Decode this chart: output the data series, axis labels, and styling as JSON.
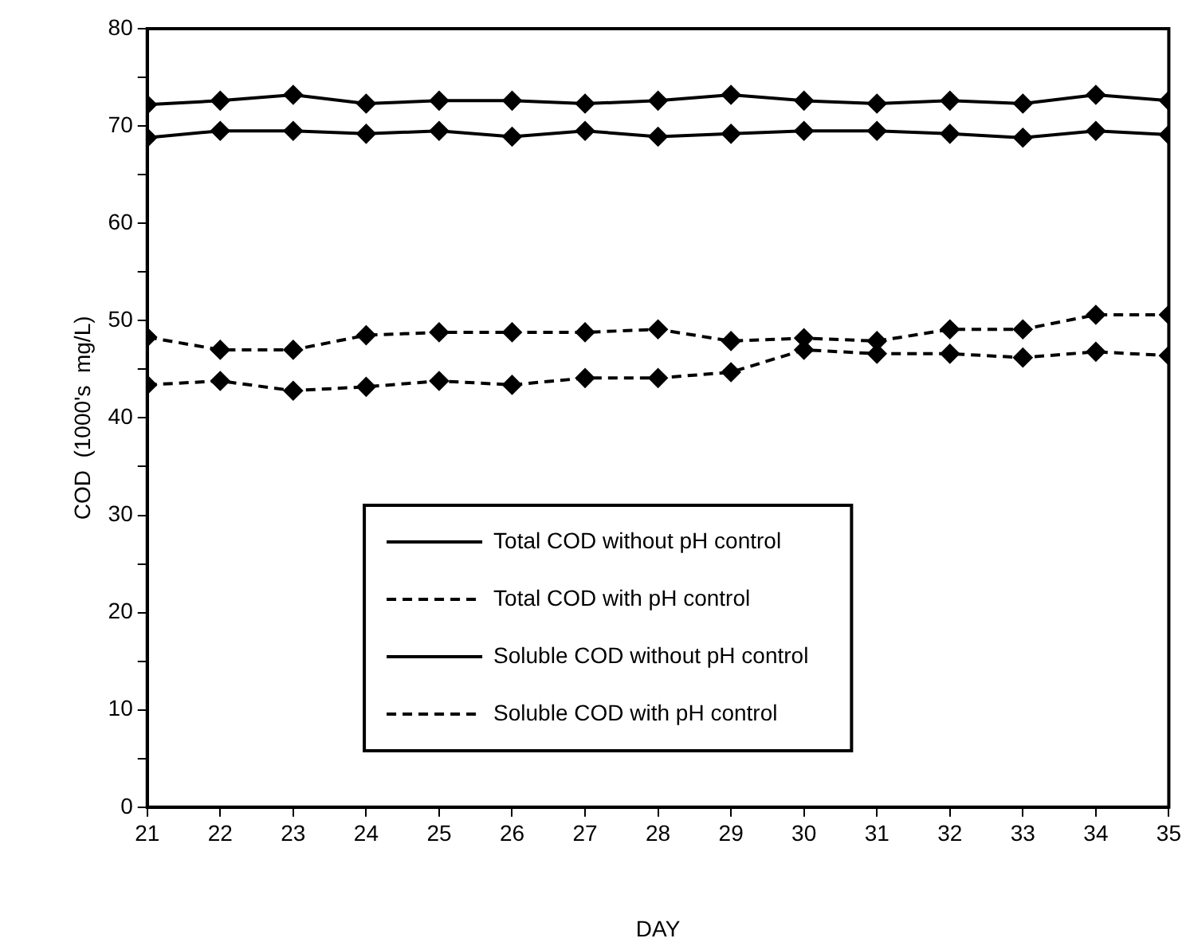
{
  "chart_data": {
    "type": "line",
    "xlabel": "DAY",
    "ylabel": "COD  (1000's  mg/L)",
    "x": [
      21,
      22,
      23,
      24,
      25,
      26,
      27,
      28,
      29,
      30,
      31,
      32,
      33,
      34,
      35
    ],
    "xlim": [
      21,
      35
    ],
    "xticks": [
      21,
      22,
      23,
      24,
      25,
      26,
      27,
      28,
      29,
      30,
      31,
      32,
      33,
      34,
      35
    ],
    "ylim": [
      0,
      80
    ],
    "yticks": [
      0,
      {
        "value": 5,
        "label": null
      },
      10,
      {
        "value": 15,
        "label": null
      },
      20,
      {
        "value": 25,
        "label": null
      },
      30,
      {
        "value": 35,
        "label": null
      },
      40,
      {
        "value": 45,
        "label": null
      },
      50,
      {
        "value": 55,
        "label": null
      },
      60,
      {
        "value": 65,
        "label": null
      },
      70,
      {
        "value": 75,
        "label": null
      },
      80
    ],
    "grid": false,
    "legend": "center",
    "marker": "diamond",
    "series": [
      {
        "name": "Total COD without pH control",
        "color": "#000000",
        "line_style": "solid",
        "values": [
          72.2,
          72.6,
          73.2,
          72.3,
          72.6,
          72.6,
          72.3,
          72.6,
          73.2,
          72.6,
          72.3,
          72.6,
          72.3,
          73.2,
          72.6
        ]
      },
      {
        "name": "Total COD with pH control",
        "color": "#000000",
        "line_style": "dashed",
        "values": [
          48.3,
          47.0,
          47.0,
          48.5,
          48.8,
          48.8,
          48.8,
          49.1,
          47.9,
          48.2,
          47.9,
          49.1,
          49.1,
          50.6,
          50.6
        ]
      },
      {
        "name": "Soluble COD without pH control",
        "color": "#000000",
        "line_style": "solid",
        "values": [
          68.8,
          69.5,
          69.5,
          69.2,
          69.5,
          68.9,
          69.5,
          68.9,
          69.2,
          69.5,
          69.5,
          69.2,
          68.8,
          69.5,
          69.1
        ]
      },
      {
        "name": "Soluble COD with pH control",
        "color": "#000000",
        "line_style": "dashed",
        "values": [
          43.4,
          43.8,
          42.8,
          43.2,
          43.8,
          43.4,
          44.1,
          44.1,
          44.7,
          47.0,
          46.6,
          46.6,
          46.2,
          46.8,
          46.4
        ]
      }
    ]
  }
}
